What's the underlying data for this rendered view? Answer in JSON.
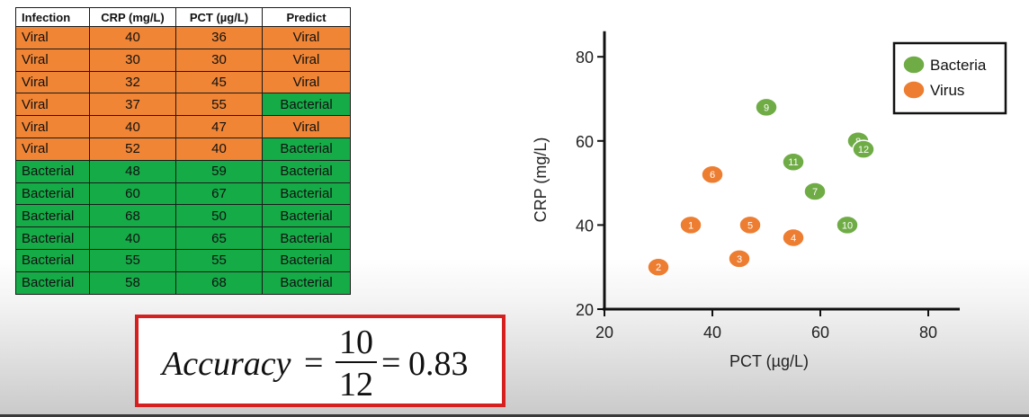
{
  "table": {
    "headers": [
      "Infection",
      "CRP (mg/L)",
      "PCT (µg/L)",
      "Predict"
    ],
    "rows": [
      [
        "Viral",
        "40",
        "36",
        "Viral"
      ],
      [
        "Viral",
        "30",
        "30",
        "Viral"
      ],
      [
        "Viral",
        "32",
        "45",
        "Viral"
      ],
      [
        "Viral",
        "37",
        "55",
        "Bacterial"
      ],
      [
        "Viral",
        "40",
        "47",
        "Viral"
      ],
      [
        "Viral",
        "52",
        "40",
        "Bacterial"
      ],
      [
        "Bacterial",
        "48",
        "59",
        "Bacterial"
      ],
      [
        "Bacterial",
        "60",
        "67",
        "Bacterial"
      ],
      [
        "Bacterial",
        "68",
        "50",
        "Bacterial"
      ],
      [
        "Bacterial",
        "40",
        "65",
        "Bacterial"
      ],
      [
        "Bacterial",
        "55",
        "55",
        "Bacterial"
      ],
      [
        "Bacterial",
        "58",
        "68",
        "Bacterial"
      ]
    ]
  },
  "colors": {
    "viral": "#f08535",
    "bacterial": "#15ac48",
    "point_green": "#6fac46",
    "point_orange": "#ed7d31",
    "accuracy_border": "#d62020"
  },
  "accuracy": {
    "label": "Accuracy",
    "numerator": "10",
    "denominator": "12",
    "result": "0.83",
    "equals": "="
  },
  "chart_data": {
    "type": "scatter",
    "xlabel": "PCT (µg/L)",
    "ylabel": "CRP (mg/L)",
    "xlim": [
      20,
      85
    ],
    "ylim": [
      20,
      85
    ],
    "xticks": [
      20,
      40,
      60,
      80
    ],
    "yticks": [
      20,
      40,
      60,
      80
    ],
    "legend_position": "top-right",
    "series": [
      {
        "name": "Bacteria",
        "points": [
          {
            "label": "7",
            "x": 59,
            "y": 48
          },
          {
            "label": "8",
            "x": 67,
            "y": 60
          },
          {
            "label": "9",
            "x": 50,
            "y": 68
          },
          {
            "label": "10",
            "x": 65,
            "y": 40
          },
          {
            "label": "11",
            "x": 55,
            "y": 55
          },
          {
            "label": "12",
            "x": 68,
            "y": 58
          }
        ]
      },
      {
        "name": "Virus",
        "points": [
          {
            "label": "1",
            "x": 36,
            "y": 40
          },
          {
            "label": "2",
            "x": 30,
            "y": 30
          },
          {
            "label": "3",
            "x": 45,
            "y": 32
          },
          {
            "label": "4",
            "x": 55,
            "y": 37
          },
          {
            "label": "5",
            "x": 47,
            "y": 40
          },
          {
            "label": "6",
            "x": 40,
            "y": 52
          }
        ]
      }
    ]
  }
}
